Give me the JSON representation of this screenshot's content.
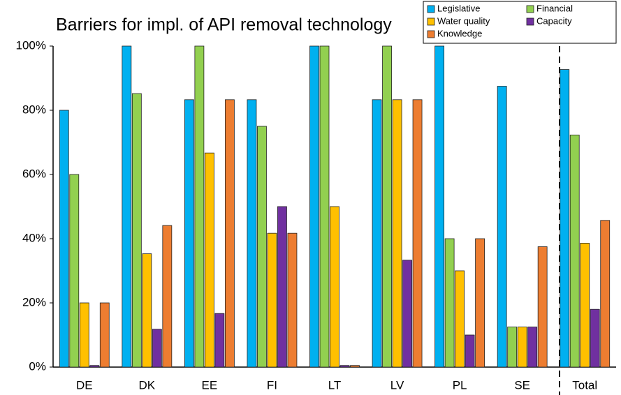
{
  "chart_data": {
    "type": "bar",
    "title": "Barriers for impl. of API removal technology",
    "categories": [
      "DE",
      "DK",
      "EE",
      "FI",
      "LT",
      "LV",
      "PL",
      "SE",
      "Total"
    ],
    "series": [
      {
        "name": "Legislative",
        "color": "#00b0f0",
        "values": [
          80,
          100,
          83.3,
          83.3,
          100,
          83.3,
          100,
          87.5,
          92.7
        ]
      },
      {
        "name": "Financial",
        "color": "#92d050",
        "values": [
          60,
          85.2,
          100,
          75,
          100,
          100,
          40,
          12.5,
          72.3
        ]
      },
      {
        "name": "Water quality",
        "color": "#ffc000",
        "values": [
          20,
          35.3,
          66.7,
          41.7,
          50,
          83.3,
          30,
          12.5,
          38.6
        ]
      },
      {
        "name": "Capacity",
        "color": "#7030a0",
        "values": [
          0.5,
          11.8,
          16.7,
          50,
          0.5,
          33.3,
          10,
          12.5,
          18
        ]
      },
      {
        "name": "Knowledge",
        "color": "#ed7d31",
        "values": [
          20,
          44.1,
          83.3,
          41.7,
          0.5,
          83.3,
          40,
          37.5,
          45.7
        ]
      }
    ],
    "ylim": [
      0,
      100
    ],
    "yticks": [
      {
        "value": 0,
        "label": "0%"
      },
      {
        "value": 20,
        "label": "20%"
      },
      {
        "value": 40,
        "label": "40%"
      },
      {
        "value": 60,
        "label": "60%"
      },
      {
        "value": 80,
        "label": "80%"
      },
      {
        "value": 100,
        "label": "100%"
      }
    ],
    "grid": false
  }
}
